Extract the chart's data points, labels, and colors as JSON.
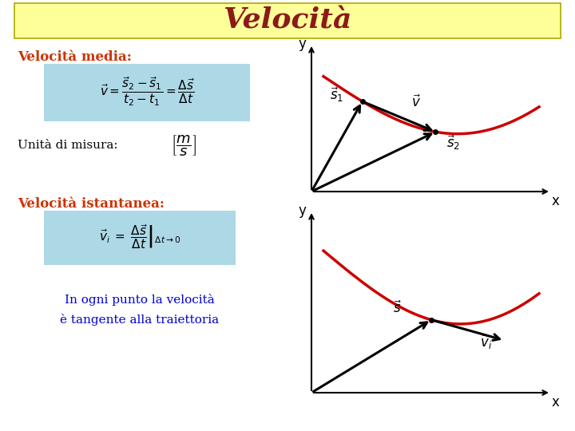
{
  "title": "Velocità",
  "title_color": "#8B1A1A",
  "title_bg": "#FFFF99",
  "bg_color": "#FFFFFF",
  "section1_label": "Velocità media:",
  "section2_label": "Velocità istantanea:",
  "section_color": "#CC3300",
  "note_color": "#0000CC",
  "note_text": "In ogni punto la velocità\nè tangente alla traiettoria",
  "formula_bg": "#ADD8E6",
  "arrow_color": "#000000",
  "curve_color": "#CC0000",
  "axes_color": "#000000"
}
